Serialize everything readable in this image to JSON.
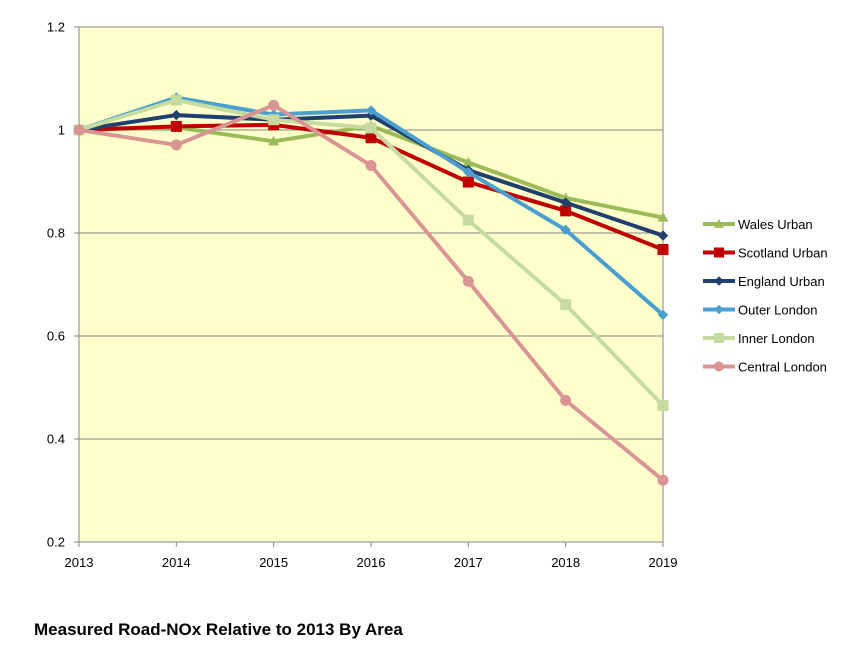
{
  "chart_data": {
    "type": "line",
    "title": "Measured Road-NOx Relative to 2013 By Area",
    "xlabel": "",
    "ylabel": "",
    "x": [
      "2013",
      "2014",
      "2015",
      "2016",
      "2017",
      "2018",
      "2019"
    ],
    "ylim": [
      0.2,
      1.2
    ],
    "yticks": [
      0.2,
      0.4,
      0.6,
      0.8,
      1.0,
      1.2
    ],
    "ytick_labels": [
      "0.2",
      "0.4",
      "0.6",
      "0.8",
      "1",
      "1.2"
    ],
    "grid": "horizontal",
    "plot_background": "#FFFFCC",
    "legend_position": "right",
    "series": [
      {
        "name": "Wales Urban",
        "color": "#9BBB59",
        "marker": "triangle",
        "values": [
          1.0,
          1.005,
          0.978,
          1.008,
          0.937,
          0.868,
          0.83
        ]
      },
      {
        "name": "Scotland Urban",
        "color": "#C00000",
        "marker": "square",
        "values": [
          1.0,
          1.007,
          1.01,
          0.985,
          0.899,
          0.843,
          0.768
        ]
      },
      {
        "name": "England Urban",
        "color": "#1F3F6E",
        "marker": "diamond",
        "values": [
          1.0,
          1.029,
          1.02,
          1.028,
          0.922,
          0.859,
          0.795
        ]
      },
      {
        "name": "Outer London",
        "color": "#4A9FD0",
        "marker": "diamond",
        "values": [
          1.0,
          1.063,
          1.03,
          1.038,
          0.918,
          0.806,
          0.641
        ]
      },
      {
        "name": "Inner London",
        "color": "#C6DBA0",
        "marker": "square",
        "values": [
          1.0,
          1.058,
          1.02,
          1.004,
          0.825,
          0.661,
          0.465
        ]
      },
      {
        "name": "Central London",
        "color": "#D99594",
        "marker": "circle",
        "values": [
          1.0,
          0.971,
          1.048,
          0.931,
          0.706,
          0.475,
          0.32
        ]
      }
    ]
  }
}
